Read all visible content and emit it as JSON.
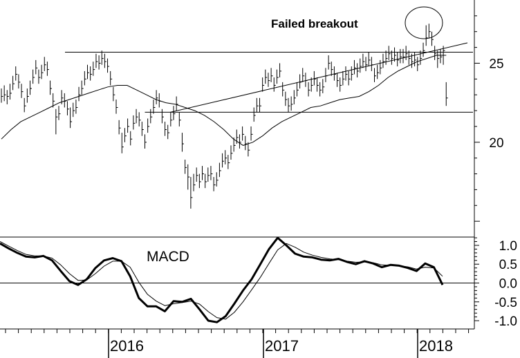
{
  "chart_data": [
    {
      "type": "ohlc",
      "annotation": "Failed breakout",
      "y_ticks": [
        20,
        25
      ],
      "y_tick_labels": [
        "20",
        "25"
      ],
      "ylim": [
        14,
        29
      ],
      "x_tick_labels": [
        "2016",
        "2017",
        "2018"
      ],
      "xlim": [
        "2015-01",
        "2018-04"
      ],
      "price_bars": [
        [
          22.9,
          23.4,
          22.5
        ],
        [
          23.0,
          23.6,
          22.6
        ],
        [
          22.9,
          23.3,
          22.4
        ],
        [
          23.1,
          23.7,
          22.7
        ],
        [
          23.7,
          24.2,
          23.3
        ],
        [
          24.3,
          24.8,
          23.9
        ],
        [
          23.8,
          24.3,
          23.4
        ],
        [
          23.2,
          23.7,
          22.8
        ],
        [
          22.3,
          22.8,
          21.9
        ],
        [
          22.9,
          23.4,
          22.5
        ],
        [
          23.4,
          23.9,
          23.0
        ],
        [
          24.1,
          24.6,
          23.7
        ],
        [
          24.7,
          25.2,
          24.3
        ],
        [
          24.1,
          24.6,
          23.7
        ],
        [
          24.4,
          24.9,
          24.0
        ],
        [
          24.9,
          25.4,
          24.5
        ],
        [
          24.6,
          25.1,
          24.2
        ],
        [
          23.4,
          23.9,
          23.0
        ],
        [
          22.6,
          23.1,
          22.2
        ],
        [
          21.6,
          22.1,
          20.5
        ],
        [
          21.8,
          22.3,
          21.4
        ],
        [
          22.8,
          23.3,
          22.4
        ],
        [
          22.6,
          23.1,
          22.2
        ],
        [
          22.1,
          22.6,
          21.7
        ],
        [
          21.3,
          22.2,
          20.9
        ],
        [
          22.0,
          22.5,
          21.6
        ],
        [
          22.2,
          22.7,
          21.8
        ],
        [
          23.0,
          23.5,
          22.6
        ],
        [
          23.4,
          23.9,
          23.0
        ],
        [
          24.0,
          24.5,
          23.6
        ],
        [
          24.4,
          24.9,
          24.0
        ],
        [
          24.3,
          24.8,
          23.9
        ],
        [
          24.6,
          25.1,
          24.2
        ],
        [
          25.1,
          25.6,
          24.7
        ],
        [
          25.0,
          25.5,
          24.6
        ],
        [
          25.3,
          25.8,
          24.9
        ],
        [
          25.1,
          25.6,
          24.7
        ],
        [
          24.8,
          25.3,
          24.4
        ],
        [
          24.0,
          24.5,
          23.6
        ],
        [
          23.0,
          23.5,
          22.6
        ],
        [
          22.2,
          22.7,
          21.8
        ],
        [
          20.9,
          21.4,
          20.5
        ],
        [
          19.7,
          20.6,
          19.3
        ],
        [
          20.4,
          20.9,
          20.0
        ],
        [
          21.0,
          21.5,
          20.6
        ],
        [
          20.2,
          20.7,
          19.8
        ],
        [
          21.2,
          21.7,
          20.8
        ],
        [
          21.6,
          22.1,
          21.2
        ],
        [
          21.4,
          21.9,
          21.0
        ],
        [
          20.8,
          21.3,
          20.4
        ],
        [
          20.0,
          20.5,
          19.6
        ],
        [
          21.0,
          21.5,
          20.6
        ],
        [
          21.6,
          22.1,
          21.2
        ],
        [
          22.2,
          22.7,
          21.8
        ],
        [
          22.8,
          23.3,
          22.4
        ],
        [
          22.6,
          23.1,
          22.2
        ],
        [
          21.6,
          22.1,
          21.2
        ],
        [
          20.8,
          21.3,
          20.4
        ],
        [
          20.6,
          21.1,
          20.2
        ],
        [
          21.4,
          21.9,
          21.0
        ],
        [
          21.8,
          22.3,
          21.4
        ],
        [
          22.4,
          22.9,
          22.0
        ],
        [
          21.4,
          21.9,
          21.0
        ],
        [
          19.9,
          20.6,
          19.4
        ],
        [
          18.4,
          18.9,
          18.0
        ],
        [
          17.8,
          18.6,
          17.0
        ],
        [
          16.5,
          17.8,
          15.8
        ],
        [
          17.3,
          18.0,
          16.9
        ],
        [
          17.9,
          18.4,
          17.5
        ],
        [
          17.5,
          18.0,
          17.1
        ],
        [
          18.0,
          18.5,
          17.6
        ],
        [
          17.5,
          18.0,
          17.1
        ],
        [
          17.9,
          18.4,
          17.5
        ],
        [
          18.0,
          18.5,
          17.6
        ],
        [
          17.3,
          17.8,
          16.9
        ],
        [
          17.6,
          18.1,
          17.2
        ],
        [
          18.2,
          18.7,
          17.8
        ],
        [
          18.8,
          19.3,
          18.4
        ],
        [
          19.0,
          19.5,
          18.6
        ],
        [
          18.7,
          19.2,
          18.3
        ],
        [
          19.3,
          19.8,
          18.9
        ],
        [
          19.8,
          20.3,
          19.4
        ],
        [
          20.3,
          20.8,
          19.9
        ],
        [
          20.0,
          20.5,
          19.6
        ],
        [
          20.5,
          21.0,
          20.1
        ],
        [
          19.9,
          20.4,
          19.5
        ],
        [
          19.5,
          20.0,
          19.1
        ],
        [
          20.5,
          21.0,
          20.1
        ],
        [
          21.7,
          22.2,
          21.3
        ],
        [
          22.3,
          22.8,
          21.9
        ],
        [
          22.3,
          22.8,
          21.9
        ],
        [
          23.6,
          24.1,
          23.2
        ],
        [
          24.1,
          24.6,
          23.7
        ],
        [
          23.9,
          24.4,
          23.5
        ],
        [
          24.2,
          24.7,
          23.8
        ],
        [
          23.6,
          24.1,
          23.2
        ],
        [
          24.1,
          24.6,
          23.7
        ],
        [
          24.5,
          25.0,
          24.1
        ],
        [
          23.3,
          23.8,
          22.9
        ],
        [
          22.7,
          23.2,
          22.3
        ],
        [
          22.3,
          22.8,
          21.9
        ],
        [
          22.4,
          22.9,
          22.0
        ],
        [
          22.8,
          23.3,
          22.4
        ],
        [
          23.3,
          23.8,
          22.9
        ],
        [
          23.8,
          24.3,
          23.4
        ],
        [
          24.2,
          24.7,
          23.8
        ],
        [
          23.9,
          24.4,
          23.5
        ],
        [
          23.3,
          23.8,
          22.9
        ],
        [
          23.6,
          24.1,
          23.2
        ],
        [
          24.0,
          24.5,
          23.6
        ],
        [
          23.6,
          24.1,
          23.2
        ],
        [
          23.3,
          23.8,
          22.9
        ],
        [
          23.5,
          24.0,
          23.1
        ],
        [
          24.2,
          24.7,
          23.8
        ],
        [
          25.0,
          25.5,
          24.6
        ],
        [
          24.6,
          25.1,
          24.2
        ],
        [
          24.3,
          24.8,
          23.9
        ],
        [
          23.9,
          24.4,
          23.5
        ],
        [
          23.6,
          24.1,
          23.2
        ],
        [
          24.0,
          24.5,
          23.6
        ],
        [
          24.3,
          24.8,
          23.9
        ],
        [
          24.0,
          24.5,
          23.6
        ],
        [
          24.3,
          24.8,
          23.9
        ],
        [
          24.7,
          25.2,
          24.3
        ],
        [
          24.5,
          25.0,
          24.1
        ],
        [
          24.8,
          25.3,
          24.4
        ],
        [
          25.1,
          25.6,
          24.7
        ],
        [
          24.9,
          25.4,
          24.5
        ],
        [
          25.2,
          25.7,
          24.8
        ],
        [
          24.9,
          25.4,
          24.5
        ],
        [
          24.2,
          24.7,
          23.8
        ],
        [
          24.4,
          24.9,
          24.0
        ],
        [
          24.7,
          25.2,
          24.3
        ],
        [
          25.1,
          25.6,
          24.7
        ],
        [
          25.3,
          25.8,
          24.9
        ],
        [
          25.6,
          26.1,
          25.2
        ],
        [
          25.3,
          25.8,
          24.9
        ],
        [
          25.5,
          26.0,
          25.1
        ],
        [
          25.2,
          25.7,
          24.8
        ],
        [
          25.4,
          25.9,
          25.0
        ],
        [
          25.4,
          25.9,
          25.0
        ],
        [
          25.6,
          26.1,
          25.2
        ],
        [
          25.3,
          25.8,
          24.9
        ],
        [
          25.1,
          25.6,
          24.7
        ],
        [
          25.2,
          25.7,
          24.8
        ],
        [
          24.9,
          25.4,
          24.5
        ],
        [
          25.3,
          25.8,
          24.9
        ],
        [
          25.8,
          26.3,
          25.4
        ],
        [
          26.6,
          27.4,
          26.1
        ],
        [
          27.0,
          27.5,
          26.6
        ],
        [
          26.5,
          27.0,
          26.1
        ],
        [
          25.6,
          26.1,
          25.2
        ],
        [
          25.3,
          25.8,
          24.7
        ],
        [
          25.4,
          25.9,
          25.0
        ],
        [
          25.8,
          26.1,
          24.9
        ],
        [
          22.8,
          23.8,
          22.3
        ]
      ],
      "moving_average": [
        20.2,
        20.8,
        21.3,
        21.6,
        21.9,
        22.2,
        22.5,
        22.7,
        22.9,
        23.1,
        23.3,
        23.5,
        23.6,
        23.6,
        23.3,
        23.0,
        22.7,
        22.5,
        22.4,
        22.2,
        22.0,
        21.7,
        21.3,
        20.8,
        20.2,
        19.8,
        20.0,
        20.4,
        20.9,
        21.3,
        21.6,
        21.9,
        22.2,
        22.3,
        22.5,
        22.7,
        22.8,
        22.9,
        23.2,
        23.6,
        24.1,
        24.5,
        24.8,
        25.1,
        25.3,
        25.5,
        25.5
      ],
      "support_line": [
        [
          0,
          25.7
        ],
        [
          152,
          25.7
        ]
      ],
      "neckline": [
        [
          50,
          21.9
        ],
        [
          152,
          21.9
        ]
      ],
      "trendline": [
        [
          56,
          21.9
        ],
        [
          152,
          26.2
        ]
      ]
    },
    {
      "type": "line",
      "title": "MACD",
      "y_ticks": [
        1.0,
        0.5,
        0.0,
        -0.5,
        -1.0
      ],
      "y_tick_labels": [
        "1.0",
        "0.5",
        "0.0",
        "-0.5",
        "-1.0"
      ],
      "ylim": [
        -1.22,
        1.22
      ],
      "series": [
        {
          "values": [
            1.05,
            0.92,
            0.8,
            0.7,
            0.68,
            0.72,
            0.6,
            0.32,
            0.05,
            -0.05,
            0.1,
            0.4,
            0.6,
            0.66,
            0.58,
            0.18,
            -0.4,
            -0.62,
            -0.62,
            -0.75,
            -0.48,
            -0.5,
            -0.42,
            -0.7,
            -1.0,
            -1.04,
            -0.88,
            -0.55,
            -0.2,
            0.1,
            0.5,
            0.9,
            1.2,
            1.0,
            0.78,
            0.7,
            0.68,
            0.62,
            0.6,
            0.64,
            0.56,
            0.5,
            0.58,
            0.52,
            0.42,
            0.48,
            0.46,
            0.4,
            0.32,
            0.52,
            0.42,
            -0.05
          ]
        },
        {
          "values": [
            1.1,
            0.98,
            0.86,
            0.76,
            0.72,
            0.72,
            0.66,
            0.48,
            0.25,
            0.07,
            0.08,
            0.25,
            0.45,
            0.58,
            0.58,
            0.42,
            0.02,
            -0.3,
            -0.48,
            -0.6,
            -0.55,
            -0.52,
            -0.48,
            -0.56,
            -0.76,
            -0.92,
            -0.96,
            -0.78,
            -0.5,
            -0.18,
            0.15,
            0.52,
            0.88,
            1.05,
            0.95,
            0.82,
            0.74,
            0.68,
            0.64,
            0.62,
            0.58,
            0.55,
            0.56,
            0.54,
            0.48,
            0.47,
            0.46,
            0.43,
            0.37,
            0.42,
            0.4,
            0.18
          ]
        }
      ]
    }
  ],
  "colors": {
    "line": "#000000",
    "background": "#ffffff"
  }
}
